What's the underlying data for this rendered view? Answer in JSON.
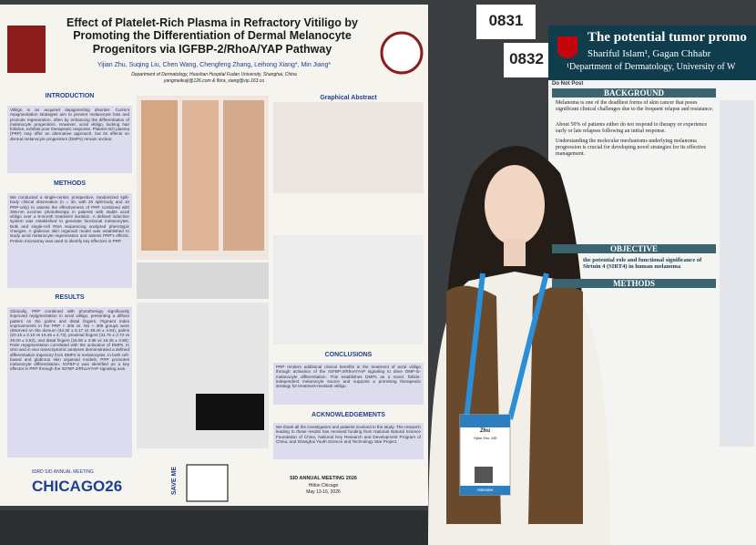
{
  "left_poster": {
    "title": "Effect of Platelet-Rich Plasma in Refractory Vitiligo by Promoting the Differentiation of Dermal Melanocyte Progenitors via IGFBP-2/RhoA/YAP Pathway",
    "authors": "Yijian Zhu, Suqing Liu, Chen Wang, Chengfeng Zhang, Leihong Xiang*, Min Jiang*",
    "affiliation": "Department of Dermatology, Huashan Hospital Fudan University, Shanghai, China",
    "emails": "yangmeikuiji@126.com & flora_xiang@vip.163.co",
    "sections": [
      {
        "heading": "INTRODUCTION",
        "text": "Vitiligo is an acquired depigmenting disorder. Current repigmentation strategies aim to prevent melanocyte loss and promote regeneration, often by enhancing the differentiation of melanocyte progenitors. However, acral vitiligo, lacking hair follicles, exhibits poor therapeutic response. Platelet-rich plasma (PRP) may offer an alternative approach, but its effects on dermal melanocyte progenitors (DMPs) remain unclear."
      },
      {
        "heading": "METHODS",
        "text": "We conducted a single-center, prospective, randomized split-body clinical observation (n = 30, with 20 split-body and 10 PRP-only) to assess the effectiveness of PRP combined with 308-nm excimer phototherapy in patients with stable acral vitiligo over a 9-month treatment duration. A defined induction system was established to generate functional melanocytes. Bulk and single-cell RNA sequencing analyzed phenotypic changes. A glabrous skin organoid model was established to study acral melanocyte regeneration and assess PRP's effects. Protein microarray was used to identify key effectors in PRP."
      },
      {
        "heading": "RESULTS",
        "text": "Clinically, PRP combined with phototherapy significantly improved repigmentation in acral vitiligo, presenting a diffuse pattern on the palms and distal fingers. Pigment index improvements in the PRP + 308 vs. NS + 308 groups were observed on the dorsum (44.30 ± 6.17 vs 38.40 ± 4.94), palms (20.15 ± 3.10 vs 16.45 ± 4.73), proximal fingers (31.75 ± 3.73 vs 29.00 ± 3.52), and distal fingers (16.90 ± 3.86 vs 16.45 ± 3.80). Palm repigmentation correlated with the activation of DMPs. In vitro and in vivo transcriptomic analyses demonstrated a defined differentiation trajectory from DMPs to melanocytes. In both cell-based and glabrous skin organoid models, PRP promotes melanocyte differentiation. IGFBP-2 was identified as a key effector in PRP through the IGFBP-2/RhoA/YAP signaling axis."
      },
      {
        "heading": "CONCLUSIONS",
        "text": "PRP renders additional clinical benefits in the treatment of acral vitiligo through activation of the IGFBP-2/RhoA/YAP signaling to drive DMP-to-melanocyte differentiation. This establishes DMPs as a novel, follicle-independent melanocyte source and supports a promising therapeutic strategy for treatment-resistant vitiligo."
      },
      {
        "heading": "ACKNOWLEDGEMENTS",
        "text": "We thank all the investigators and patients involved in the study. The research leading to these results has received funding from National Natural Science Foundation of China, National Key Research and Development Program of China, and Shanghai Youth Science and Technology Star Project."
      }
    ],
    "graphical_abstract": "Graphical Abstract",
    "meeting": "83RD SID ANNUAL MEETING",
    "city": "CHICAGO26",
    "save_me": "SAVE ME",
    "footer": "SID ANNUAL MEETING 2026",
    "venue": "Hilton Chicago",
    "dates": "May 13-16, 2026"
  },
  "poster_numbers": [
    "0831",
    "0832"
  ],
  "right_poster": {
    "title": "The potential tumor promo",
    "authors": "Shariful Islam¹, Gagan Chhabr",
    "dept": "¹Department of Dermatology, University of W",
    "do_not_post": "Do Not Post",
    "headings": [
      "BACKGROUND",
      "OBJECTIVE",
      "METHODS"
    ],
    "background_items": [
      "Melanoma is one of the deadliest forms of skin cancer that poses significant clinical challenges due to the frequent relapse and resistance.",
      "About 50% of patients either do not respond to therapy or experience early or late relapses following an initial response.",
      "Understanding the molecular mechanisms underlying melanoma progression is crucial for developing novel strategies for its effective management."
    ],
    "objective_text": "the potential role and functional significance of Sirtuin 4 (SIRT4) in human melanoma"
  },
  "badge": {
    "name": "Zhu",
    "full_name": "Yijian Zhu, MD",
    "role": "Attendee"
  }
}
